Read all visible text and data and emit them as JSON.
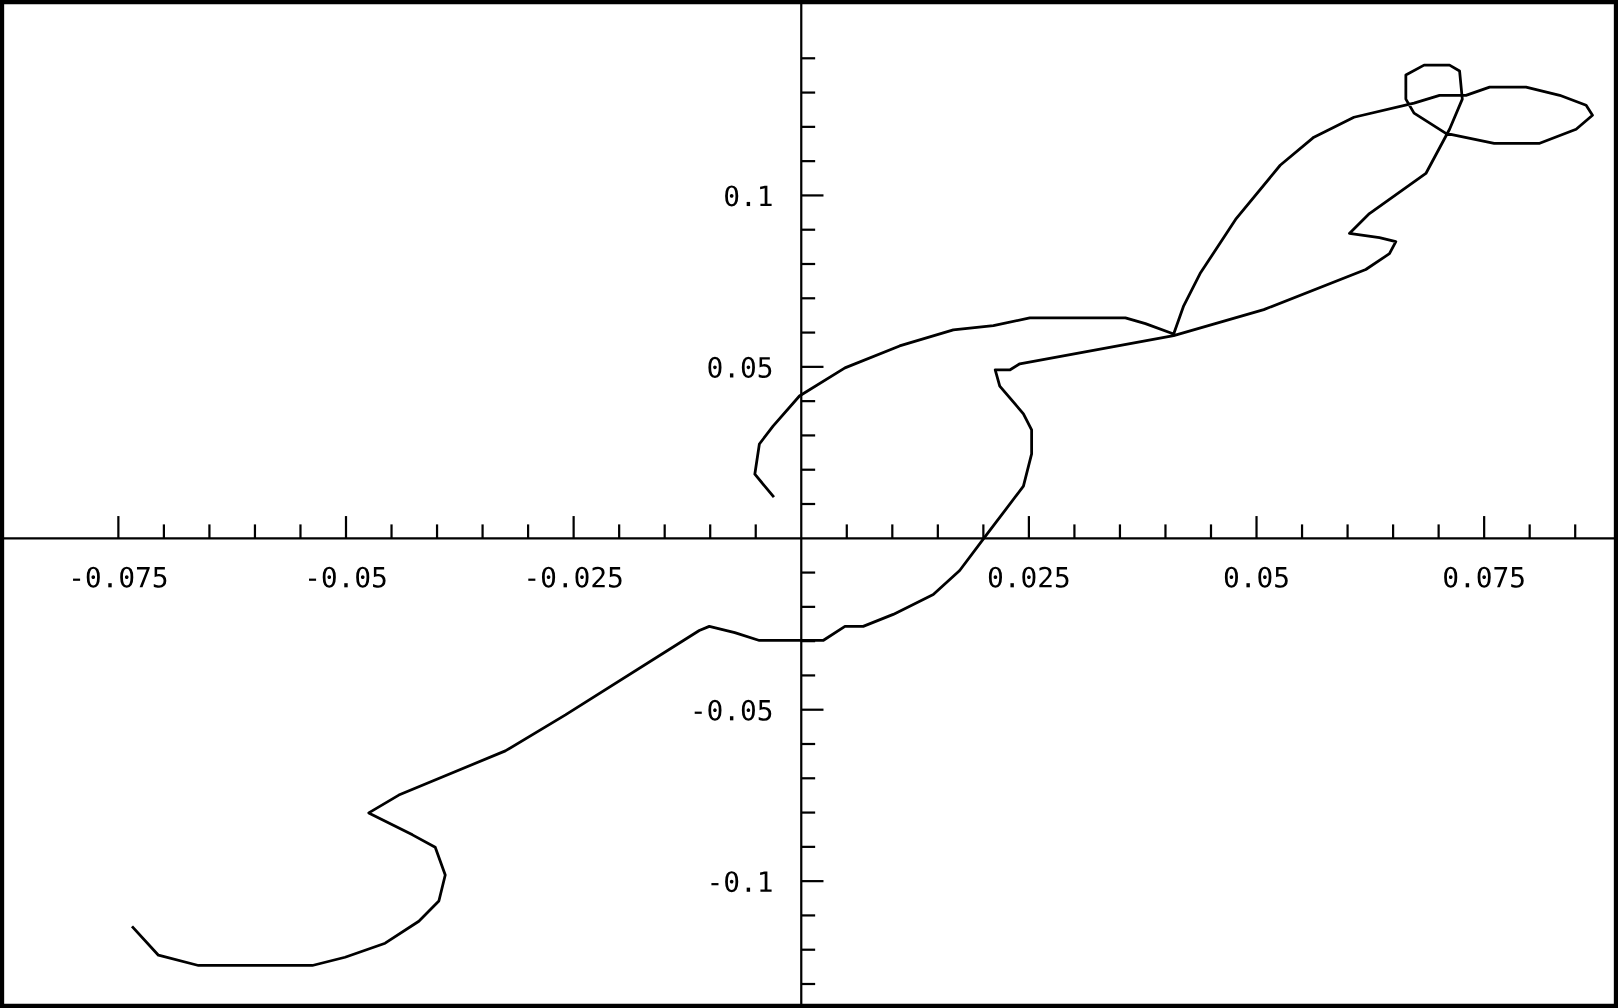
{
  "chart_data": {
    "type": "line",
    "color": "#000000",
    "marker": "none",
    "line_style": "solid",
    "grid": false,
    "x": [
      -0.0734,
      -0.0706,
      -0.0662,
      -0.0537,
      -0.0501,
      -0.0457,
      -0.042,
      -0.0398,
      -0.0391,
      -0.0402,
      -0.0427,
      -0.0475,
      -0.0442,
      -0.0325,
      -0.0259,
      -0.0112,
      -0.0101,
      -0.0073,
      -0.0046,
      0.0024,
      0.0048,
      0.0068,
      0.0101,
      0.0145,
      0.0174,
      0.0204,
      0.0244,
      0.0253,
      0.0253,
      0.0244,
      0.0218,
      0.0213,
      0.0229,
      0.024,
      0.0409,
      0.0508,
      0.062,
      0.0646,
      0.0653,
      0.0635,
      0.0602,
      0.0624,
      0.0686,
      0.0712,
      0.0726,
      0.0723,
      0.0712,
      0.0684,
      0.0664,
      0.0664,
      0.0673,
      0.0708,
      0.0761,
      0.0811,
      0.0851,
      0.0869,
      0.0862,
      0.0833,
      0.0796,
      0.0756,
      0.073,
      0.0701,
      0.0673,
      0.0607,
      0.0585,
      0.0563,
      0.0526,
      0.0477,
      0.0438,
      0.042,
      0.0409,
      0.0378,
      0.0356,
      0.0328,
      0.0251,
      0.0211,
      0.0167,
      0.0108,
      0.0048,
      -0.0002,
      -0.0031,
      -0.0046,
      -0.0051,
      -0.0031
    ],
    "values": [
      -0.1135,
      -0.1216,
      -0.1246,
      -0.1246,
      -0.1222,
      -0.1181,
      -0.1117,
      -0.1058,
      -0.0982,
      -0.0901,
      -0.0865,
      -0.0801,
      -0.0749,
      -0.062,
      -0.0515,
      -0.0269,
      -0.0257,
      -0.0275,
      -0.0298,
      -0.0298,
      -0.0257,
      -0.0257,
      -0.0222,
      -0.0164,
      -0.0094,
      0.0012,
      0.0152,
      0.0246,
      0.0316,
      0.0363,
      0.0444,
      0.0491,
      0.0491,
      0.0509,
      0.0591,
      0.0667,
      0.0784,
      0.083,
      0.0865,
      0.0877,
      0.0889,
      0.0947,
      0.1064,
      0.1193,
      0.1281,
      0.1363,
      0.138,
      0.138,
      0.1351,
      0.1281,
      0.124,
      0.1181,
      0.1152,
      0.1152,
      0.1193,
      0.1234,
      0.1263,
      0.1292,
      0.1316,
      0.1316,
      0.1292,
      0.1292,
      0.1269,
      0.1228,
      0.1199,
      0.117,
      0.1088,
      0.093,
      0.0772,
      0.0678,
      0.0596,
      0.0626,
      0.0643,
      0.0643,
      0.0643,
      0.062,
      0.0608,
      0.0561,
      0.0497,
      0.0415,
      0.0327,
      0.0275,
      0.0187,
      0.0123
    ],
    "xlim": [
      -0.088,
      0.0897
    ],
    "ylim": [
      -0.137,
      0.157
    ],
    "xticks": [
      -0.075,
      {
        "value": -0.07,
        "label": null
      },
      {
        "value": -0.065,
        "label": null
      },
      {
        "value": -0.06,
        "label": null
      },
      {
        "value": -0.055,
        "label": null
      },
      -0.05,
      {
        "value": -0.045,
        "label": null
      },
      {
        "value": -0.04,
        "label": null
      },
      {
        "value": -0.035,
        "label": null
      },
      {
        "value": -0.03,
        "label": null
      },
      -0.025,
      {
        "value": -0.02,
        "label": null
      },
      {
        "value": -0.015,
        "label": null
      },
      {
        "value": -0.01,
        "label": null
      },
      {
        "value": -0.005,
        "label": null
      },
      {
        "value": 0.005,
        "label": null
      },
      {
        "value": 0.01,
        "label": null
      },
      {
        "value": 0.015,
        "label": null
      },
      {
        "value": 0.02,
        "label": null
      },
      0.025,
      {
        "value": 0.03,
        "label": null
      },
      {
        "value": 0.035,
        "label": null
      },
      {
        "value": 0.04,
        "label": null
      },
      {
        "value": 0.045,
        "label": null
      },
      0.05,
      {
        "value": 0.055,
        "label": null
      },
      {
        "value": 0.06,
        "label": null
      },
      {
        "value": 0.065,
        "label": null
      },
      {
        "value": 0.07,
        "label": null
      },
      0.075,
      {
        "value": 0.08,
        "label": null
      },
      {
        "value": 0.085,
        "label": null
      }
    ],
    "yticks": [
      {
        "value": -0.13,
        "label": null
      },
      {
        "value": -0.12,
        "label": null
      },
      {
        "value": -0.11,
        "label": null
      },
      -0.1,
      {
        "value": -0.09,
        "label": null
      },
      {
        "value": -0.08,
        "label": null
      },
      {
        "value": -0.07,
        "label": null
      },
      {
        "value": -0.06,
        "label": null
      },
      -0.05,
      {
        "value": -0.04,
        "label": null
      },
      {
        "value": -0.03,
        "label": null
      },
      {
        "value": -0.02,
        "label": null
      },
      {
        "value": -0.01,
        "label": null
      },
      {
        "value": 0.01,
        "label": null
      },
      {
        "value": 0.02,
        "label": null
      },
      {
        "value": 0.03,
        "label": null
      },
      {
        "value": 0.04,
        "label": null
      },
      0.05,
      {
        "value": 0.06,
        "label": null
      },
      {
        "value": 0.07,
        "label": null
      },
      {
        "value": 0.08,
        "label": null
      },
      {
        "value": 0.09,
        "label": null
      },
      0.1,
      {
        "value": 0.11,
        "label": null
      },
      {
        "value": 0.12,
        "label": null
      },
      {
        "value": 0.13,
        "label": null
      },
      {
        "value": 0.14,
        "label": null
      }
    ]
  }
}
